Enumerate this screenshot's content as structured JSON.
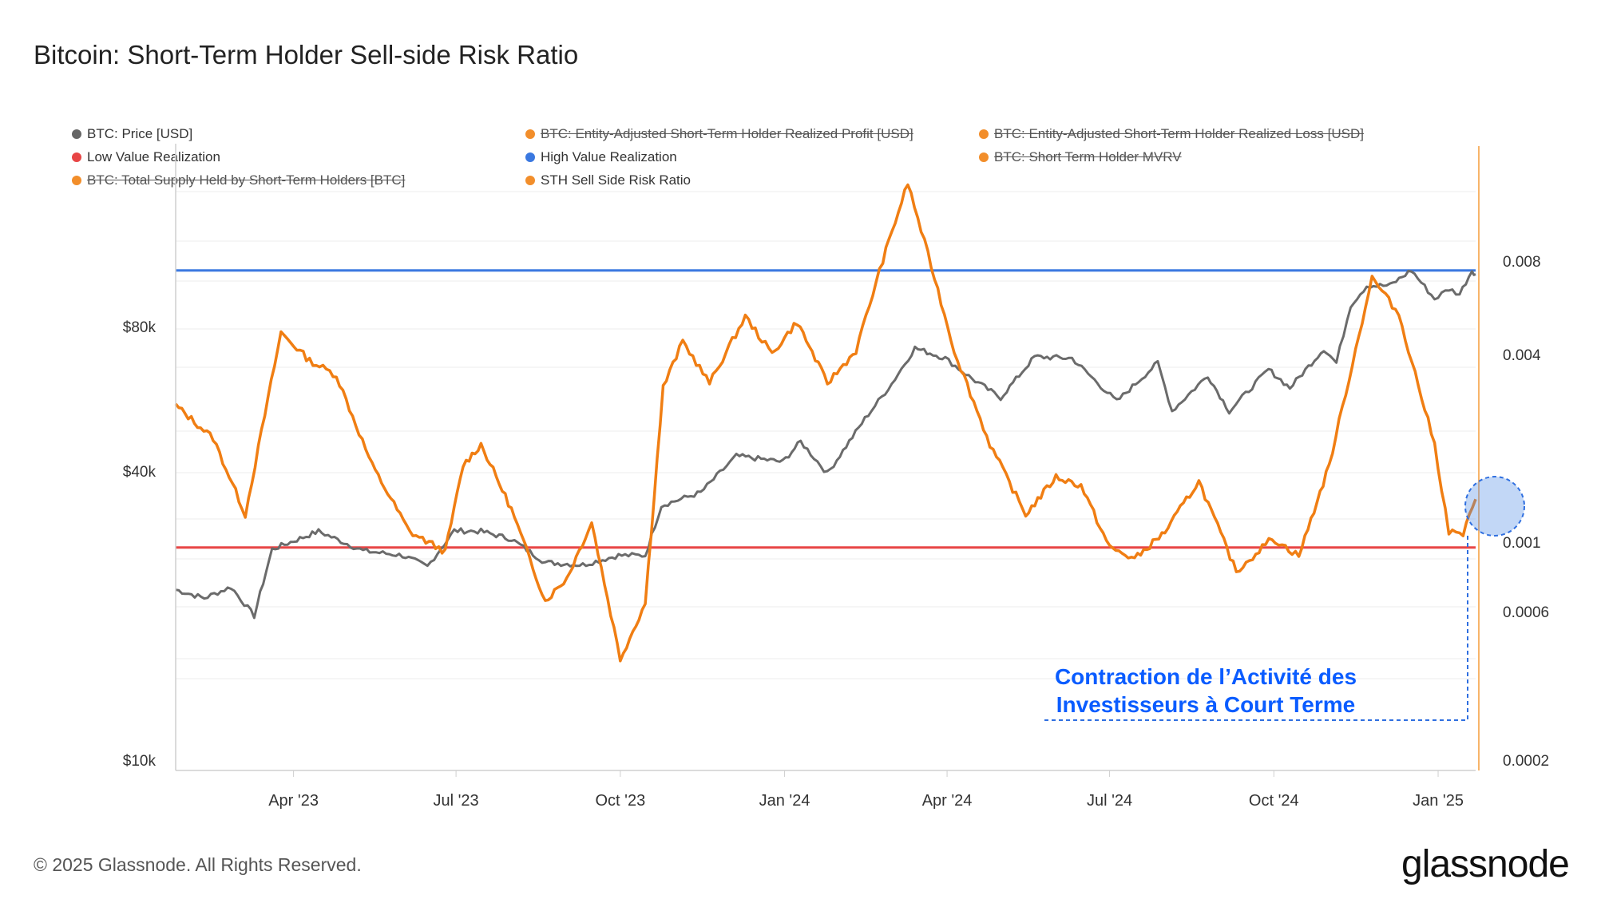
{
  "title": "Bitcoin: Short-Term Holder Sell-side Risk Ratio",
  "legend": [
    {
      "label": "BTC: Price [USD]",
      "color": "#666666",
      "struck": false
    },
    {
      "label": "BTC: Entity-Adjusted Short-Term Holder Realized Profit [USD]",
      "color": "#f28e2b",
      "struck": true
    },
    {
      "label": "BTC: Entity-Adjusted Short-Term Holder Realized Loss [USD]",
      "color": "#f28e2b",
      "struck": true
    },
    {
      "label": "Low Value Realization",
      "color": "#e84545",
      "struck": false
    },
    {
      "label": "High Value Realization",
      "color": "#3a78e0",
      "struck": false
    },
    {
      "label": "BTC: Short Term Holder MVRV",
      "color": "#f28e2b",
      "struck": true
    },
    {
      "label": "BTC: Total Supply Held by Short-Term Holders [BTC]",
      "color": "#f28e2b",
      "struck": true
    },
    {
      "label": "STH Sell Side Risk Ratio",
      "color": "#f28e2b",
      "struck": false
    }
  ],
  "annotation": {
    "line1": "Contraction de l’Activité des",
    "line2": "Investisseurs à Court Terme"
  },
  "footer": "© 2025 Glassnode. All Rights Reserved.",
  "brand": "glassnode",
  "chart_data": {
    "type": "line",
    "title": "Bitcoin: Short-Term Holder Sell-side Risk Ratio",
    "x_tick_labels": [
      "Apr '23",
      "Jul '23",
      "Oct '23",
      "Jan '24",
      "Apr '24",
      "Jul '24",
      "Oct '24",
      "Jan '25"
    ],
    "x_range": [
      "2023-01-25",
      "2025-01-22"
    ],
    "y_left": {
      "scale": "log",
      "tick_labels": [
        "$10k",
        "$40k",
        "$80k"
      ],
      "tick_values": [
        10000,
        40000,
        80000
      ]
    },
    "y_right": {
      "scale": "log",
      "tick_labels": [
        "0.0002",
        "0.0006",
        "0.001",
        "0.004",
        "0.008"
      ],
      "tick_values": [
        0.0002,
        0.0006,
        0.001,
        0.004,
        0.008
      ]
    },
    "thresholds": [
      {
        "name": "High Value Realization",
        "value": 0.0076,
        "color": "#3a78e0"
      },
      {
        "name": "Low Value Realization",
        "value": 0.00098,
        "color": "#e84545"
      }
    ],
    "series": [
      {
        "name": "BTC: Price [USD]",
        "axis": "left",
        "color": "#6b6b6b",
        "points": [
          [
            "2023-01-25",
            22900
          ],
          [
            "2023-02-10",
            22000
          ],
          [
            "2023-02-25",
            23200
          ],
          [
            "2023-03-10",
            20200
          ],
          [
            "2023-03-20",
            27800
          ],
          [
            "2023-04-15",
            30300
          ],
          [
            "2023-05-10",
            27600
          ],
          [
            "2023-06-01",
            27000
          ],
          [
            "2023-06-15",
            25600
          ],
          [
            "2023-06-30",
            30400
          ],
          [
            "2023-07-15",
            30300
          ],
          [
            "2023-08-01",
            29200
          ],
          [
            "2023-08-20",
            26100
          ],
          [
            "2023-09-10",
            25800
          ],
          [
            "2023-09-30",
            27000
          ],
          [
            "2023-10-15",
            27000
          ],
          [
            "2023-10-24",
            34300
          ],
          [
            "2023-11-15",
            36500
          ],
          [
            "2023-12-05",
            43500
          ],
          [
            "2023-12-31",
            42300
          ],
          [
            "2024-01-10",
            46600
          ],
          [
            "2024-01-25",
            40000
          ],
          [
            "2024-02-15",
            52000
          ],
          [
            "2024-03-01",
            61500
          ],
          [
            "2024-03-14",
            73000
          ],
          [
            "2024-03-31",
            69500
          ],
          [
            "2024-04-15",
            63000
          ],
          [
            "2024-05-01",
            57500
          ],
          [
            "2024-05-20",
            70000
          ],
          [
            "2024-06-10",
            69500
          ],
          [
            "2024-07-05",
            56500
          ],
          [
            "2024-07-28",
            68000
          ],
          [
            "2024-08-05",
            54000
          ],
          [
            "2024-08-25",
            64000
          ],
          [
            "2024-09-06",
            53900
          ],
          [
            "2024-09-28",
            65900
          ],
          [
            "2024-10-10",
            60300
          ],
          [
            "2024-10-29",
            72700
          ],
          [
            "2024-11-05",
            68000
          ],
          [
            "2024-11-13",
            89600
          ],
          [
            "2024-11-22",
            98400
          ],
          [
            "2024-12-05",
            98500
          ],
          [
            "2024-12-17",
            106000
          ],
          [
            "2024-12-30",
            92400
          ],
          [
            "2025-01-07",
            96900
          ],
          [
            "2025-01-13",
            94500
          ],
          [
            "2025-01-20",
            106000
          ],
          [
            "2025-01-22",
            104000
          ]
        ]
      },
      {
        "name": "STH Sell Side Risk Ratio",
        "axis": "right",
        "color": "#f07e13",
        "points": [
          [
            "2023-01-25",
            0.0028
          ],
          [
            "2023-02-15",
            0.0022
          ],
          [
            "2023-03-05",
            0.00125
          ],
          [
            "2023-03-25",
            0.0048
          ],
          [
            "2023-04-10",
            0.0039
          ],
          [
            "2023-04-25",
            0.0035
          ],
          [
            "2023-05-15",
            0.0018
          ],
          [
            "2023-06-05",
            0.0011
          ],
          [
            "2023-06-25",
            0.00095
          ],
          [
            "2023-07-05",
            0.0018
          ],
          [
            "2023-07-15",
            0.0021
          ],
          [
            "2023-08-01",
            0.0013
          ],
          [
            "2023-08-20",
            0.00066
          ],
          [
            "2023-09-01",
            0.00078
          ],
          [
            "2023-09-15",
            0.00118
          ],
          [
            "2023-10-01",
            0.00043
          ],
          [
            "2023-10-15",
            0.00065
          ],
          [
            "2023-10-25",
            0.0032
          ],
          [
            "2023-11-05",
            0.0045
          ],
          [
            "2023-11-20",
            0.0033
          ],
          [
            "2023-12-10",
            0.0054
          ],
          [
            "2023-12-25",
            0.0041
          ],
          [
            "2024-01-08",
            0.0052
          ],
          [
            "2024-01-25",
            0.0033
          ],
          [
            "2024-02-10",
            0.0042
          ],
          [
            "2024-02-25",
            0.0082
          ],
          [
            "2024-03-10",
            0.0145
          ],
          [
            "2024-03-25",
            0.0072
          ],
          [
            "2024-04-05",
            0.0042
          ],
          [
            "2024-04-25",
            0.0021
          ],
          [
            "2024-05-15",
            0.00125
          ],
          [
            "2024-06-01",
            0.00165
          ],
          [
            "2024-06-15",
            0.00155
          ],
          [
            "2024-07-01",
            0.00098
          ],
          [
            "2024-07-15",
            0.0009
          ],
          [
            "2024-08-01",
            0.0011
          ],
          [
            "2024-08-20",
            0.0016
          ],
          [
            "2024-09-10",
            0.00082
          ],
          [
            "2024-09-30",
            0.00105
          ],
          [
            "2024-10-15",
            0.00092
          ],
          [
            "2024-11-01",
            0.0018
          ],
          [
            "2024-11-25",
            0.0072
          ],
          [
            "2024-12-10",
            0.0055
          ],
          [
            "2024-12-30",
            0.0021
          ],
          [
            "2025-01-07",
            0.0011
          ],
          [
            "2025-01-15",
            0.00108
          ],
          [
            "2025-01-22",
            0.0014
          ]
        ]
      }
    ],
    "legend_position": "top-left"
  }
}
